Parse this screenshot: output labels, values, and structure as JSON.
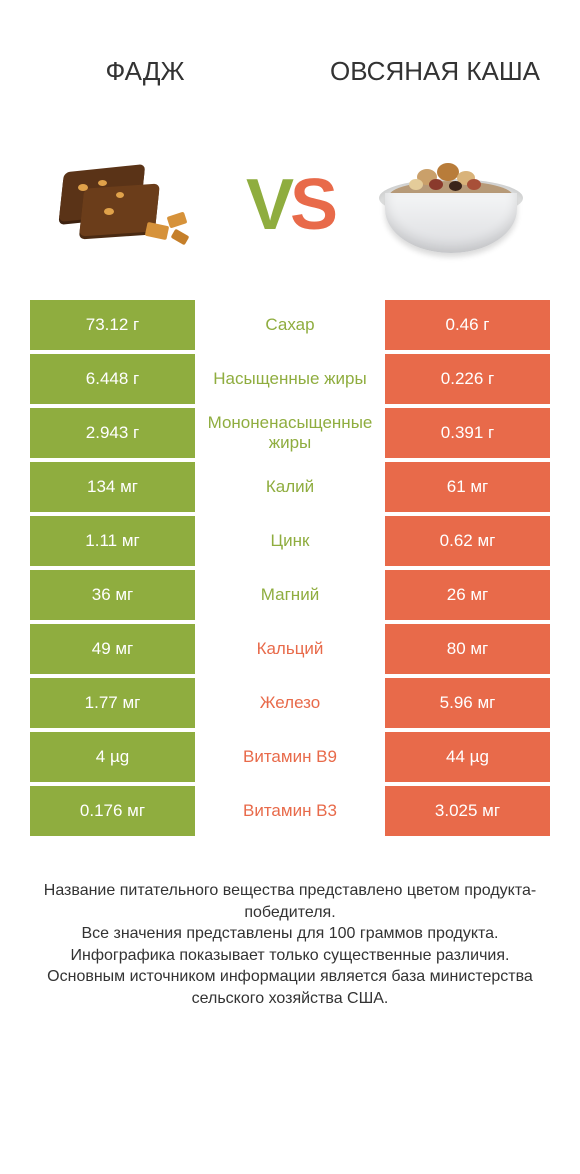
{
  "colors": {
    "left": "#8fad3f",
    "right": "#e86a4a",
    "left_text_for_mid": "#8fad3f",
    "right_text_for_mid": "#e86a4a"
  },
  "header": {
    "left": "ФАДЖ",
    "right": "ОВСЯНАЯ КАША"
  },
  "vs": {
    "v": "V",
    "s": "S"
  },
  "rows": [
    {
      "left": "73.12 г",
      "mid": "Сахар",
      "right": "0.46 г",
      "winner": "left"
    },
    {
      "left": "6.448 г",
      "mid": "Насыщенные жиры",
      "right": "0.226 г",
      "winner": "left"
    },
    {
      "left": "2.943 г",
      "mid": "Мононенасыщенные жиры",
      "right": "0.391 г",
      "winner": "left"
    },
    {
      "left": "134 мг",
      "mid": "Калий",
      "right": "61 мг",
      "winner": "left"
    },
    {
      "left": "1.11 мг",
      "mid": "Цинк",
      "right": "0.62 мг",
      "winner": "left"
    },
    {
      "left": "36 мг",
      "mid": "Магний",
      "right": "26 мг",
      "winner": "left"
    },
    {
      "left": "49 мг",
      "mid": "Кальций",
      "right": "80 мг",
      "winner": "right"
    },
    {
      "left": "1.77 мг",
      "mid": "Железо",
      "right": "5.96 мг",
      "winner": "right"
    },
    {
      "left": "4 µg",
      "mid": "Витамин B9",
      "right": "44 µg",
      "winner": "right"
    },
    {
      "left": "0.176 мг",
      "mid": "Витамин B3",
      "right": "3.025 мг",
      "winner": "right"
    }
  ],
  "footer": {
    "l1": "Название питательного вещества представлено цветом продукта-победителя.",
    "l2": "Все значения представлены для 100 граммов продукта.",
    "l3": "Инфографика показывает только существенные различия.",
    "l4": "Основным источником информации является база министерства сельского хозяйства США."
  }
}
